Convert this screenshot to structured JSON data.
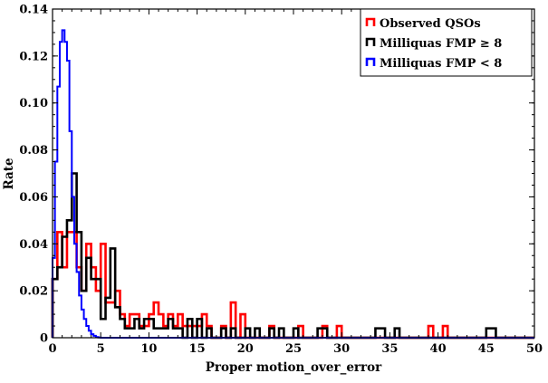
{
  "chart_data": {
    "type": "histogram-step",
    "title": "",
    "xlabel": "Proper motion_over_error",
    "ylabel": "Rate",
    "xlim": [
      0,
      50
    ],
    "ylim": [
      0,
      0.14
    ],
    "xticks": [
      "0",
      "5",
      "10",
      "15",
      "20",
      "25",
      "30",
      "35",
      "40",
      "45",
      "50"
    ],
    "yticks": [
      "0",
      "0.02",
      "0.04",
      "0.06",
      "0.08",
      "0.10",
      "0.12",
      "0.14"
    ],
    "grid": false,
    "legend_position": "top-right",
    "series": [
      {
        "name": "Observed QSOs",
        "color": "#ff0000",
        "bin_width": 0.5,
        "bins": [
          [
            0,
            0.025
          ],
          [
            0.5,
            0.045
          ],
          [
            1,
            0.03
          ],
          [
            1.5,
            0.045
          ],
          [
            2,
            0.045
          ],
          [
            2.5,
            0.03
          ],
          [
            3,
            0.02
          ],
          [
            3.5,
            0.04
          ],
          [
            4,
            0.03
          ],
          [
            4.5,
            0.02
          ],
          [
            5,
            0.04
          ],
          [
            5.5,
            0.015
          ],
          [
            6,
            0.015
          ],
          [
            6.5,
            0.02
          ],
          [
            7,
            0.01
          ],
          [
            7.5,
            0.005
          ],
          [
            8,
            0.01
          ],
          [
            8.5,
            0.01
          ],
          [
            9,
            0.005
          ],
          [
            9.5,
            0.005
          ],
          [
            10,
            0.01
          ],
          [
            10.5,
            0.015
          ],
          [
            11,
            0.01
          ],
          [
            11.5,
            0.005
          ],
          [
            12,
            0.01
          ],
          [
            12.5,
            0.005
          ],
          [
            13,
            0.01
          ],
          [
            13.5,
            0.005
          ],
          [
            14,
            0.005
          ],
          [
            14.5,
            0.005
          ],
          [
            15,
            0.005
          ],
          [
            15.5,
            0.01
          ],
          [
            16,
            0.005
          ],
          [
            17.5,
            0.005
          ],
          [
            18.5,
            0.015
          ],
          [
            19.5,
            0.01
          ],
          [
            22.5,
            0.005
          ],
          [
            25.5,
            0.005
          ],
          [
            28,
            0.005
          ],
          [
            29.5,
            0.005
          ],
          [
            39,
            0.005
          ],
          [
            40.5,
            0.005
          ]
        ]
      },
      {
        "name": "Milliquas FMP ≥ 8",
        "color": "#000000",
        "bin_width": 0.5,
        "bins": [
          [
            0,
            0.025
          ],
          [
            0.5,
            0.03
          ],
          [
            1,
            0.043
          ],
          [
            1.5,
            0.05
          ],
          [
            2,
            0.07
          ],
          [
            2.5,
            0.045
          ],
          [
            3,
            0.02
          ],
          [
            3.5,
            0.034
          ],
          [
            4,
            0.025
          ],
          [
            4.5,
            0.025
          ],
          [
            5,
            0.008
          ],
          [
            5.5,
            0.017
          ],
          [
            6,
            0.038
          ],
          [
            6.5,
            0.013
          ],
          [
            7,
            0.008
          ],
          [
            7.5,
            0.004
          ],
          [
            8,
            0.004
          ],
          [
            8.5,
            0.008
          ],
          [
            9,
            0.004
          ],
          [
            9.5,
            0.008
          ],
          [
            10,
            0.008
          ],
          [
            10.5,
            0.004
          ],
          [
            11,
            0.004
          ],
          [
            11.5,
            0.004
          ],
          [
            12,
            0.008
          ],
          [
            12.5,
            0.004
          ],
          [
            13,
            0.004
          ],
          [
            14,
            0.008
          ],
          [
            15,
            0.008
          ],
          [
            16,
            0.004
          ],
          [
            17.5,
            0.004
          ],
          [
            18.5,
            0.004
          ],
          [
            20,
            0.004
          ],
          [
            21,
            0.004
          ],
          [
            22.5,
            0.004
          ],
          [
            23.5,
            0.004
          ],
          [
            25,
            0.004
          ],
          [
            27.5,
            0.004
          ],
          [
            28,
            0.004
          ],
          [
            33.5,
            0.004
          ],
          [
            34,
            0.004
          ],
          [
            35.5,
            0.004
          ],
          [
            45,
            0.004
          ],
          [
            45.5,
            0.004
          ]
        ]
      },
      {
        "name": "Milliquas FMP < 8",
        "color": "#0000ff",
        "bin_width": 0.25,
        "bins": [
          [
            0,
            0.034
          ],
          [
            0.25,
            0.075
          ],
          [
            0.5,
            0.107
          ],
          [
            0.75,
            0.126
          ],
          [
            1,
            0.131
          ],
          [
            1.25,
            0.126
          ],
          [
            1.5,
            0.118
          ],
          [
            1.75,
            0.088
          ],
          [
            2,
            0.06
          ],
          [
            2.25,
            0.04
          ],
          [
            2.5,
            0.028
          ],
          [
            2.75,
            0.018
          ],
          [
            3,
            0.012
          ],
          [
            3.25,
            0.008
          ],
          [
            3.5,
            0.005
          ],
          [
            3.75,
            0.003
          ],
          [
            4,
            0.0015
          ],
          [
            4.25,
            0.0008
          ],
          [
            4.5,
            0.0003
          ],
          [
            4.75,
            0.0001
          ]
        ]
      }
    ]
  }
}
